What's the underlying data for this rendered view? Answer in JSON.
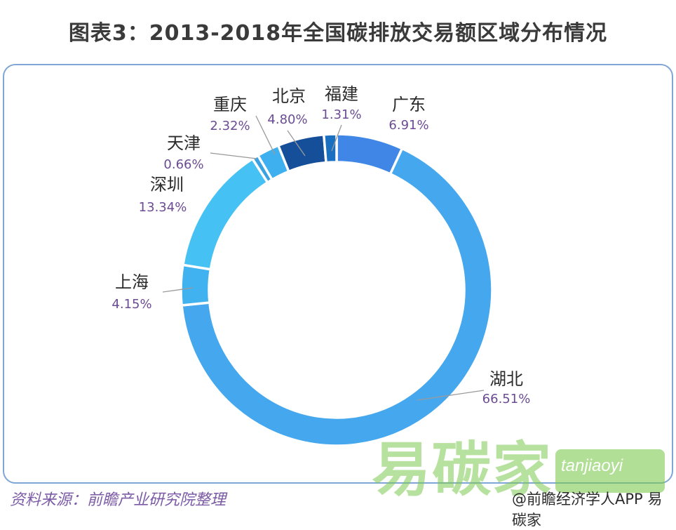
{
  "chart_data": {
    "type": "pie",
    "title": "图表3：2013-2018年全国碳排放交易额区域分布情况",
    "categories": [
      "广东",
      "湖北",
      "上海",
      "深圳",
      "天津",
      "重庆",
      "北京",
      "福建"
    ],
    "values": [
      6.91,
      66.51,
      4.15,
      13.34,
      0.66,
      2.32,
      4.8,
      1.31
    ],
    "labels": [
      "6.91%",
      "66.51%",
      "4.15%",
      "13.34%",
      "0.66%",
      "2.32%",
      "4.80%",
      "1.31%"
    ],
    "colors": [
      "#3f86e6",
      "#45a7ee",
      "#41b2f0",
      "#46c1f3",
      "#3aa2e3",
      "#3eb0ef",
      "#154e99",
      "#1a6fc0"
    ],
    "donut": true
  },
  "footer": {
    "source": "资料来源：前瞻产业研究院整理"
  },
  "watermark": {
    "brand": "易碳家",
    "domain": "tanjiaoyi",
    "account": "@前瞻经济学人APP  易碳家"
  }
}
